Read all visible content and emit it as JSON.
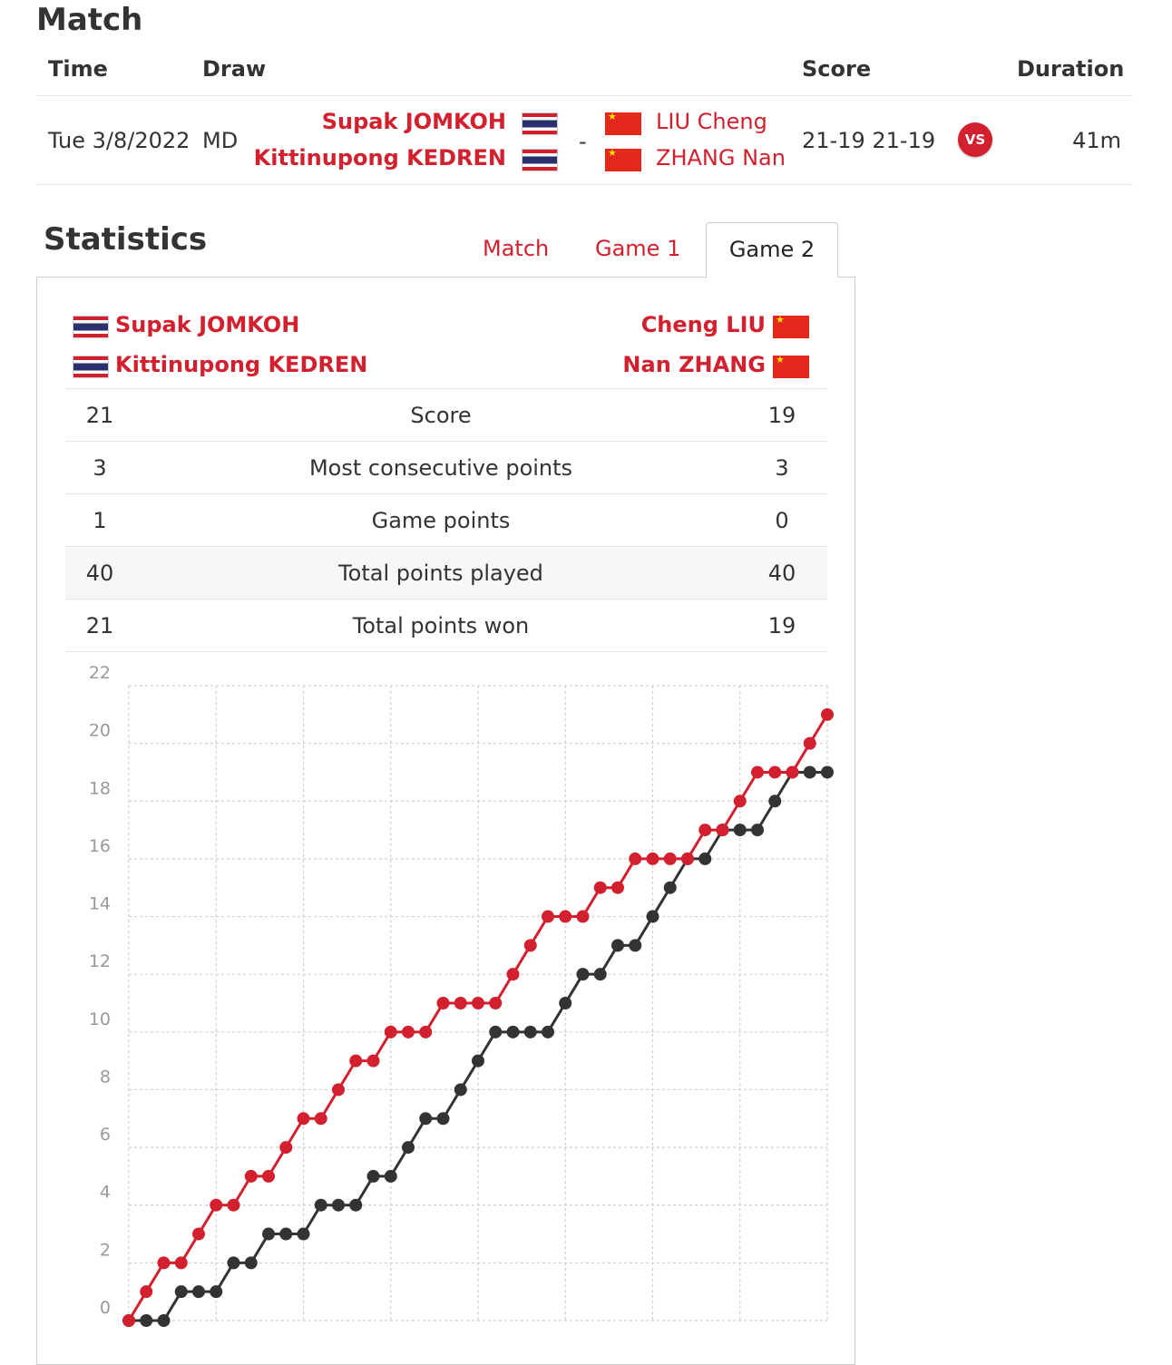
{
  "match": {
    "title": "Match",
    "headers": {
      "time": "Time",
      "draw": "Draw",
      "score": "Score",
      "duration": "Duration"
    },
    "time": "Tue 3/8/2022",
    "draw": "MD",
    "team1": [
      "Supak JOMKOH",
      "Kittinupong KEDREN"
    ],
    "separator": "-",
    "team2": [
      "LIU Cheng",
      "ZHANG Nan"
    ],
    "score": "21-19 21-19",
    "vs_label": "VS",
    "duration": "41m"
  },
  "statistics": {
    "title": "Statistics",
    "tabs": [
      "Match",
      "Game 1",
      "Game 2"
    ],
    "active_tab": "Game 2",
    "left_players": [
      "Supak JOMKOH",
      "Kittinupong KEDREN"
    ],
    "right_players": [
      "Cheng LIU",
      "Nan ZHANG"
    ],
    "rows": [
      {
        "left": "21",
        "label": "Score",
        "right": "19"
      },
      {
        "left": "3",
        "label": "Most consecutive points",
        "right": "3"
      },
      {
        "left": "1",
        "label": "Game points",
        "right": "0"
      },
      {
        "left": "40",
        "label": "Total points played",
        "right": "40"
      },
      {
        "left": "21",
        "label": "Total points won",
        "right": "19"
      }
    ]
  },
  "colors": {
    "accent": "#d3202f",
    "team1_line": "#d3202f",
    "team2_line": "#333333"
  },
  "icons": {
    "flag_team1": "thailand-flag-icon",
    "flag_team2": "china-flag-icon",
    "vs": "vs-badge-icon"
  },
  "chart_data": {
    "type": "line",
    "ylim": [
      0,
      22
    ],
    "yticks": [
      0,
      2,
      4,
      6,
      8,
      10,
      12,
      14,
      16,
      18,
      20,
      22
    ],
    "x": [
      0,
      1,
      2,
      3,
      4,
      5,
      6,
      7,
      8,
      9,
      10,
      11,
      12,
      13,
      14,
      15,
      16,
      17,
      18,
      19,
      20,
      21,
      22,
      23,
      24,
      25,
      26,
      27,
      28,
      29,
      30,
      31,
      32,
      33,
      34,
      35,
      36,
      37,
      38,
      39,
      40
    ],
    "series": [
      {
        "color": "#d3202f",
        "values": [
          0,
          1,
          2,
          2,
          3,
          4,
          4,
          5,
          5,
          6,
          7,
          7,
          8,
          9,
          9,
          10,
          10,
          10,
          11,
          11,
          11,
          11,
          12,
          13,
          14,
          14,
          14,
          15,
          15,
          16,
          16,
          16,
          16,
          17,
          17,
          18,
          19,
          19,
          19,
          20,
          21
        ]
      },
      {
        "color": "#333333",
        "values": [
          0,
          0,
          0,
          1,
          1,
          1,
          2,
          2,
          3,
          3,
          3,
          4,
          4,
          4,
          5,
          5,
          6,
          7,
          7,
          8,
          9,
          10,
          10,
          10,
          10,
          11,
          12,
          12,
          13,
          13,
          14,
          15,
          16,
          16,
          17,
          17,
          17,
          18,
          19,
          19,
          19
        ]
      }
    ]
  }
}
